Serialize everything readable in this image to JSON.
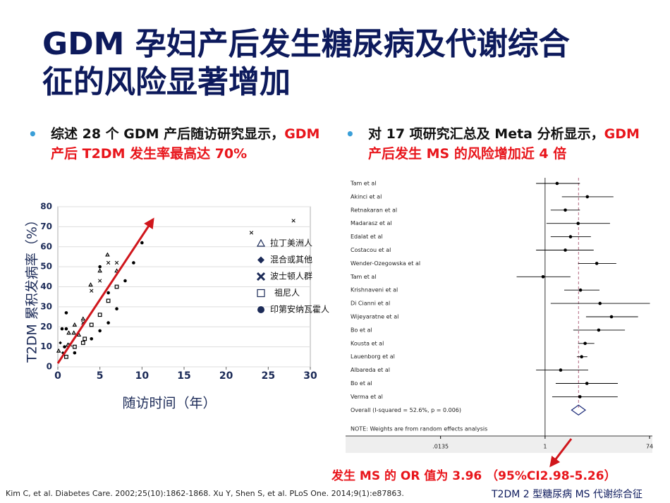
{
  "title_lines": [
    "GDM 孕妇产后发生糖尿病及代谢综合",
    "征的风险显著增加"
  ],
  "bullets": [
    {
      "text": "综述 28 个 GDM 产后随访研究显示，",
      "highlight": "GDM 产后 T2DM 发生率最高达 70%"
    },
    {
      "text": "对 17 项研究汇总及 Meta 分析显示，",
      "highlight": "GDM 产后发生 MS 的风险增加近 4 倍"
    }
  ],
  "chart_data": [
    {
      "type": "scatter",
      "xlabel": "随访时间（年）",
      "ylabel": "T2DM 累积发病率（%）",
      "xlim": [
        0,
        30
      ],
      "xticks": [
        0,
        5,
        10,
        15,
        20,
        25,
        30
      ],
      "ylim": [
        0,
        80
      ],
      "yticks": [
        0,
        10,
        20,
        30,
        40,
        50,
        60,
        70,
        80
      ],
      "grid": true,
      "legend": "right",
      "series": [
        {
          "name": "拉丁美洲人",
          "marker": "triangle-open",
          "color": "#1b2a57",
          "x": [
            0.1,
            1.2,
            1.3,
            1.9,
            2,
            3,
            3.9,
            5.9,
            7,
            5,
            2.5
          ],
          "y": [
            8,
            11,
            17,
            17,
            21,
            24,
            41,
            56,
            48,
            48,
            16
          ]
        },
        {
          "name": "混合或其他",
          "marker": "diamond",
          "color": "#1b2a57",
          "x": [
            0.3,
            0.6
          ],
          "y": [
            12,
            7
          ]
        },
        {
          "name": "波士顿人群",
          "marker": "cross",
          "color": "#1b2a57",
          "x": [
            23,
            28,
            6,
            7,
            4,
            5,
            3,
            1.5
          ],
          "y": [
            67,
            73,
            52,
            52,
            38,
            43,
            22,
            11
          ]
        },
        {
          "name": "祖尼人",
          "marker": "square-open",
          "color": "#1b2a57",
          "x": [
            1,
            2,
            3,
            4,
            5,
            6,
            7,
            3.2
          ],
          "y": [
            5,
            10,
            12,
            21,
            26,
            33,
            40,
            14
          ]
        },
        {
          "name": "印第安纳瓦霍人",
          "marker": "circle",
          "color": "#1b2a57",
          "x": [
            0.5,
            1,
            1,
            0.8,
            5,
            6,
            7,
            8,
            9,
            10,
            6,
            5,
            4,
            2
          ],
          "y": [
            19,
            19,
            27,
            10,
            50,
            37,
            29,
            43,
            52,
            62,
            22,
            18,
            14,
            7
          ]
        }
      ]
    },
    {
      "type": "forest",
      "log_x": true,
      "xlim": [
        0.00027,
        83
      ],
      "xticks": [
        {
          "value": 0.0135,
          "label": ".0135"
        },
        1,
        74
      ],
      "null_line": 1,
      "studies": [
        "Tam et al",
        "Akinci et al",
        "Retnakaran et al",
        "Madarasz et al",
        "Edalat et al",
        "Costacou et al",
        "Wender-Ozegowska et al",
        "Tam et al",
        "Krishnaveni et al",
        "Di Cianni et al",
        "Wijeyaratne et al",
        "Bo et al",
        "Kousta et al",
        "Lauenborg et al",
        "Albareda et al",
        "Bo et al",
        "Verma et al"
      ],
      "values": [
        1.64,
        5.7,
        2.3,
        3.9,
        2.85,
        2.3,
        8.4,
        0.92,
        4.3,
        9.6,
        15.4,
        9.1,
        5.2,
        4.5,
        1.9,
        5.6,
        4.2
      ],
      "ci_low": [
        0.69,
        2.0,
        1.26,
        1.06,
        1.26,
        0.69,
        3.9,
        0.31,
        2.2,
        1.26,
        5.4,
        3.2,
        3.9,
        3.7,
        0.69,
        1.55,
        1.34
      ],
      "ci_high": [
        4.2,
        16.7,
        4.2,
        14.5,
        6.6,
        7.4,
        18.8,
        2.85,
        9.4,
        75,
        46,
        26.8,
        7.6,
        5.7,
        5.9,
        20,
        19.9
      ],
      "overall": {
        "label": "Overall  (I-squared = 52.6%, p = 0.006)",
        "value": 3.96,
        "ci_low": 2.98,
        "ci_high": 5.26
      },
      "note": "NOTE: Weights are from random effects analysis"
    }
  ],
  "annotation": "发生 MS 的 OR 值为 3.96 （95%CI2.98-5.26）",
  "footer": {
    "citation": "Kim C, et al. Diabetes Care. 2002;25(10):1862-1868. Xu Y, Shen S, et al. PLoS One. 2014;9(1):e87863.",
    "note": "T2DM 2 型糖尿病 MS 代谢综合征"
  }
}
